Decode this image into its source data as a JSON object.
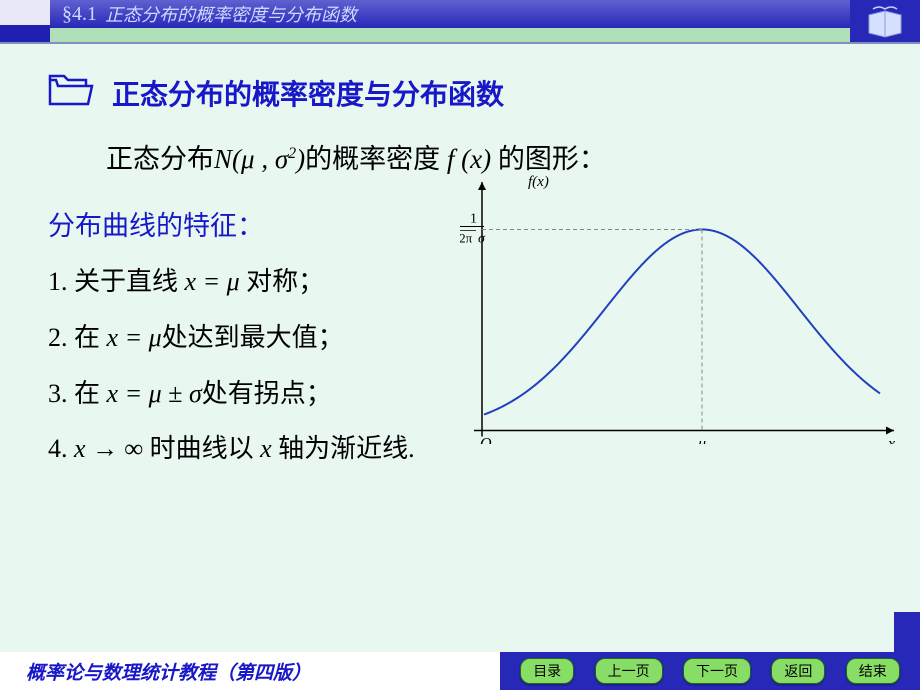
{
  "header": {
    "section_number": "§4.1",
    "section_title": "正态分布的概率密度与分布函数"
  },
  "content": {
    "main_heading": "正态分布的概率密度与分布函数",
    "formula_prefix": "正态分布",
    "formula_notation": "N(μ, σ²)",
    "formula_mid": "的概率密度",
    "formula_fx": "f(x)",
    "formula_suffix": "的图形：",
    "sub_heading": "分布曲线的特征：",
    "items": [
      {
        "prefix": "1. 关于直线 ",
        "math": "x = μ",
        "suffix": " 对称；"
      },
      {
        "prefix": "2. 在 ",
        "math": "x = μ",
        "suffix": "处达到最大值；"
      },
      {
        "prefix": "3. 在 ",
        "math": "x = μ ± σ",
        "suffix": "处有拐点；"
      },
      {
        "prefix": "4.  ",
        "math": "x → ∞",
        "suffix": " 时曲线以 x 轴为渐近线."
      }
    ]
  },
  "chart": {
    "type": "line",
    "curve_color": "#2040c0",
    "axis_color": "#000000",
    "dash_color": "#888888",
    "background_color": "#e8f8f0",
    "line_width": 2,
    "y_label": "f(x)",
    "x_label": "x",
    "origin_label": "O",
    "mu_label": "μ",
    "max_label_numerator": "1",
    "max_label_denominator": "√(2π)σ",
    "mu_position": 0.55,
    "peak_height": 0.85,
    "sigma": 0.22,
    "xlim": [
      0,
      1
    ],
    "ylim": [
      0,
      1
    ],
    "axis_y_x": 0.05,
    "axis_x_y": 0.95
  },
  "footer": {
    "book_title": "概率论与数理统计教程（第四版）",
    "buttons": [
      "目录",
      "上一页",
      "下一页",
      "返回",
      "结束"
    ]
  },
  "colors": {
    "page_bg": "#b0e0b8",
    "content_bg": "#e8f8f0",
    "heading_blue": "#1818c8",
    "bar_blue": "#2828b8",
    "button_green": "#88dd66"
  }
}
